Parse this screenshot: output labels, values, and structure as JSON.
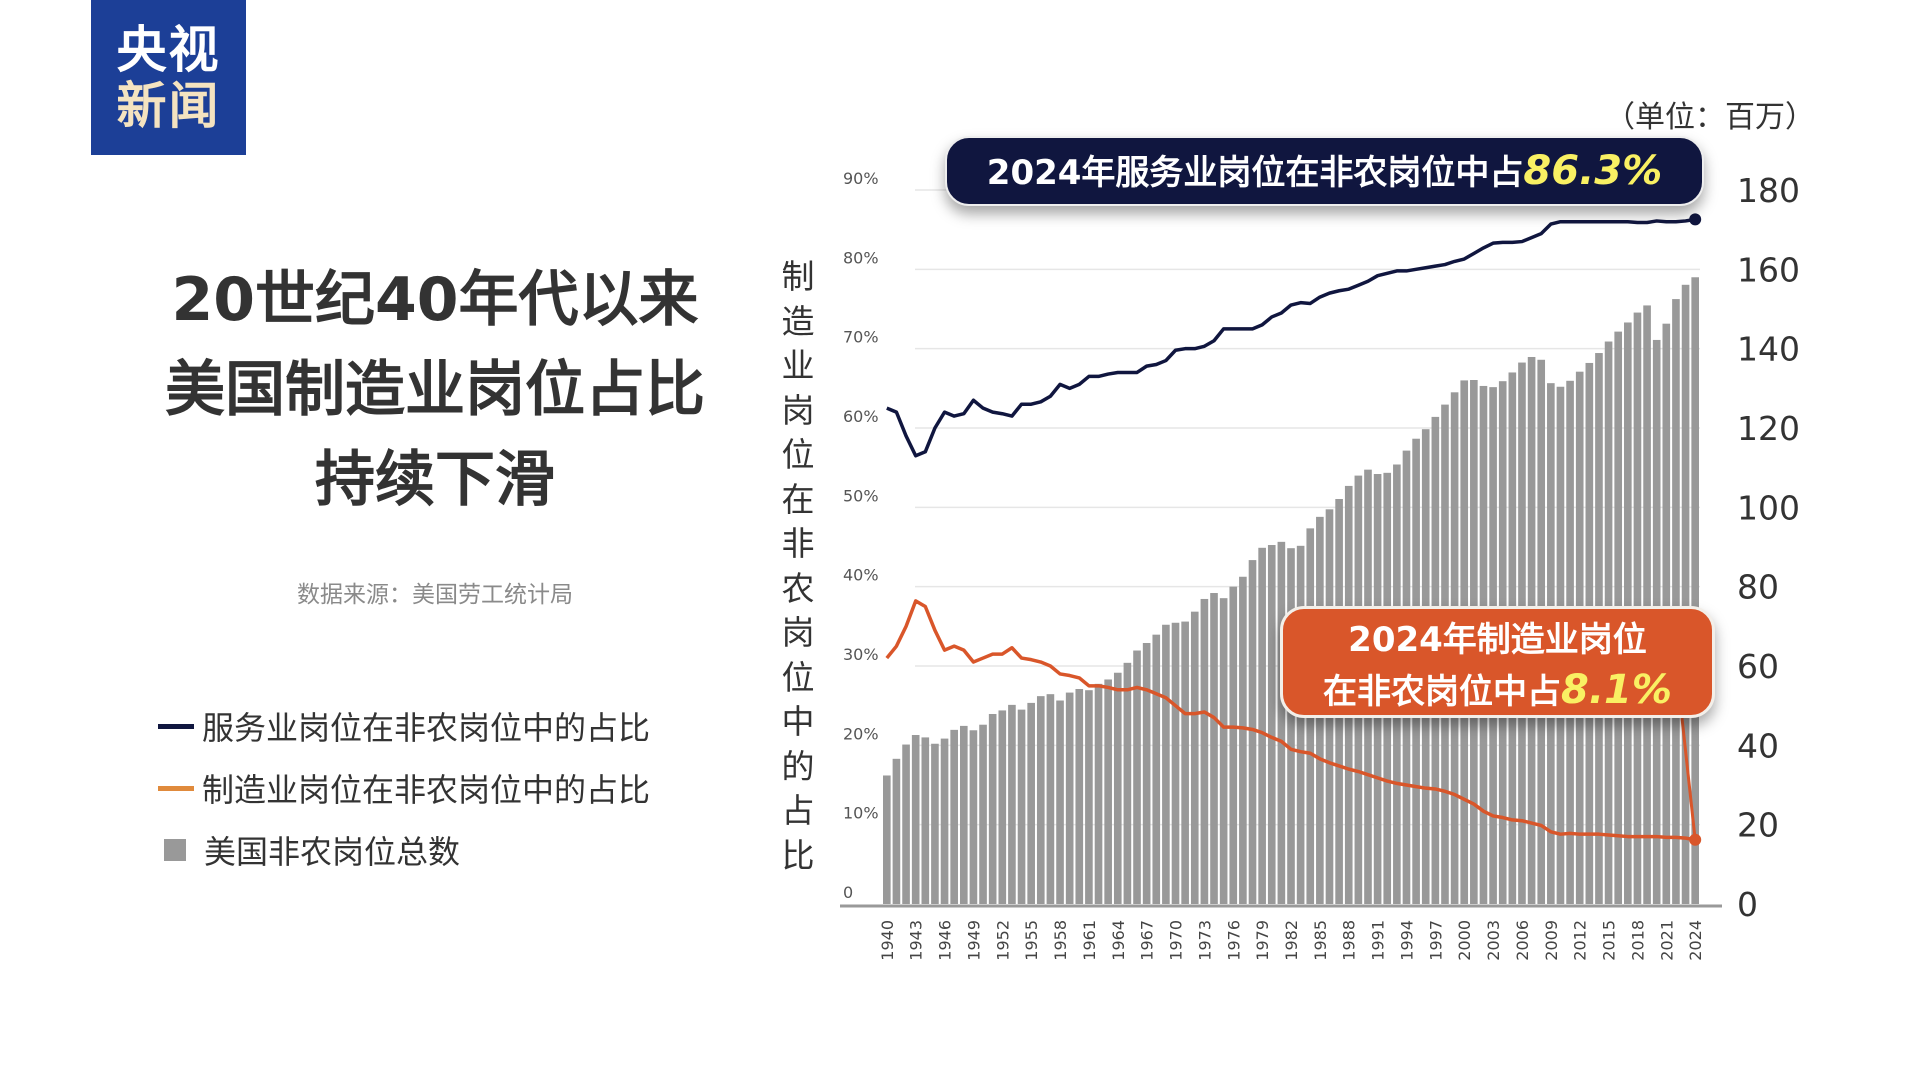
{
  "logo": {
    "line1": "央视",
    "line2": "新闻"
  },
  "title": {
    "line1": "20世纪40年代以来",
    "line2": "美国制造业岗位占比",
    "line3": "持续下滑"
  },
  "source": "数据来源：美国劳工统计局",
  "legend": [
    {
      "label": "服务业岗位在非农岗位中的占比",
      "color": "#10163f"
    },
    {
      "label": "制造业岗位在非农岗位中的占比",
      "color": "#e08a3c"
    },
    {
      "label": "美国非农岗位总数",
      "color": "#999999"
    }
  ],
  "unit_label": "（单位：百万）",
  "callouts": {
    "service": {
      "text": "2024年服务业岗位在非农岗位中占",
      "value": "86.3%"
    },
    "manufacturing": {
      "line1": "2024年制造业岗位",
      "line2": "在非农岗位中占",
      "value": "8.1%"
    }
  },
  "chart_data": {
    "type": "bar+line",
    "ylabel_left": "制造业岗位在非农岗位中的占比",
    "ylim_left": [
      0,
      90
    ],
    "yticks_left": [
      "0",
      "10%",
      "20%",
      "30%",
      "40%",
      "50%",
      "60%",
      "70%",
      "80%",
      "90%"
    ],
    "ylim_right": [
      0,
      180
    ],
    "yticks_right": [
      "0",
      "20",
      "40",
      "60",
      "80",
      "100",
      "120",
      "140",
      "160",
      "180"
    ],
    "grid": true,
    "x": [
      1940,
      1941,
      1942,
      1943,
      1944,
      1945,
      1946,
      1947,
      1948,
      1949,
      1950,
      1951,
      1952,
      1953,
      1954,
      1955,
      1956,
      1957,
      1958,
      1959,
      1960,
      1961,
      1962,
      1963,
      1964,
      1965,
      1966,
      1967,
      1968,
      1969,
      1970,
      1971,
      1972,
      1973,
      1974,
      1975,
      1976,
      1977,
      1978,
      1979,
      1980,
      1981,
      1982,
      1983,
      1984,
      1985,
      1986,
      1987,
      1988,
      1989,
      1990,
      1991,
      1992,
      1993,
      1994,
      1995,
      1996,
      1997,
      1998,
      1999,
      2000,
      2001,
      2002,
      2003,
      2004,
      2005,
      2006,
      2007,
      2008,
      2009,
      2010,
      2011,
      2012,
      2013,
      2014,
      2015,
      2016,
      2017,
      2018,
      2019,
      2020,
      2021,
      2022,
      2023,
      2024
    ],
    "xtick_labels": [
      "1940",
      "1943",
      "1946",
      "1949",
      "1952",
      "1955",
      "1958",
      "1961",
      "1964",
      "1967",
      "1970",
      "1973",
      "1976",
      "1979",
      "1982",
      "1985",
      "1988",
      "1991",
      "1994",
      "1997",
      "2000",
      "2003",
      "2006",
      "2009",
      "2012",
      "2015",
      "2018",
      "2021",
      "2024"
    ],
    "series": [
      {
        "name": "美国非农岗位总数",
        "type": "bar",
        "axis": "right",
        "color": "#999999",
        "values": [
          32.4,
          36.6,
          40.2,
          42.6,
          42.0,
          40.4,
          41.7,
          43.9,
          44.9,
          43.8,
          45.2,
          47.9,
          48.8,
          50.2,
          49.0,
          50.7,
          52.4,
          52.9,
          51.3,
          53.3,
          54.2,
          53.9,
          55.5,
          56.6,
          58.3,
          60.8,
          63.9,
          65.8,
          67.9,
          70.4,
          70.9,
          71.2,
          73.7,
          76.9,
          78.4,
          77.1,
          80.0,
          82.5,
          86.7,
          89.8,
          90.5,
          91.3,
          89.7,
          90.3,
          94.7,
          97.6,
          99.5,
          102.1,
          105.4,
          108.0,
          109.5,
          108.4,
          108.7,
          110.8,
          114.3,
          117.3,
          119.7,
          122.8,
          125.9,
          129.0,
          132.0,
          132.1,
          130.6,
          130.3,
          131.8,
          134.0,
          136.5,
          137.9,
          137.2,
          131.3,
          130.4,
          131.9,
          134.2,
          136.4,
          138.9,
          141.8,
          144.3,
          146.6,
          149.1,
          150.9,
          142.2,
          146.3,
          152.5,
          156.1,
          158.0
        ]
      },
      {
        "name": "服务业岗位在非农岗位中的占比",
        "type": "line",
        "axis": "left",
        "color": "#10163f",
        "values": [
          62.5,
          62,
          59,
          56.5,
          57,
          60,
          62,
          61.5,
          61.8,
          63.5,
          62.5,
          62,
          61.8,
          61.5,
          63,
          63,
          63.3,
          64,
          65.5,
          65,
          65.5,
          66.5,
          66.5,
          66.8,
          67,
          67,
          67,
          67.8,
          68,
          68.5,
          69.8,
          70,
          70,
          70.3,
          71,
          72.5,
          72.5,
          72.5,
          72.5,
          73,
          74,
          74.5,
          75.5,
          75.8,
          75.7,
          76.5,
          77,
          77.3,
          77.5,
          78,
          78.5,
          79.2,
          79.5,
          79.8,
          79.8,
          80,
          80.2,
          80.4,
          80.6,
          81,
          81.3,
          82,
          82.7,
          83.3,
          83.4,
          83.4,
          83.5,
          84,
          84.5,
          85.7,
          86,
          86,
          86,
          86,
          86,
          86,
          86,
          86,
          85.9,
          85.9,
          86.1,
          86,
          86,
          86.1,
          86.3
        ]
      },
      {
        "name": "制造业岗位在非农岗位中的占比",
        "type": "line",
        "axis": "left",
        "color": "#d9562a",
        "values": [
          31.0,
          32.5,
          35,
          38.2,
          37.5,
          34.5,
          32.0,
          32.5,
          32.0,
          30.5,
          31.0,
          31.5,
          31.5,
          32.3,
          31.0,
          30.8,
          30.5,
          30.0,
          29.0,
          28.8,
          28.5,
          27.5,
          27.5,
          27.3,
          27.0,
          27.0,
          27.3,
          27.0,
          26.5,
          26.0,
          25.0,
          24.0,
          24.0,
          24.2,
          23.5,
          22.3,
          22.3,
          22.2,
          22.0,
          21.6,
          21.0,
          20.5,
          19.5,
          19.2,
          19.0,
          18.3,
          17.8,
          17.4,
          17.0,
          16.7,
          16.3,
          15.9,
          15.5,
          15.2,
          15.0,
          14.8,
          14.6,
          14.5,
          14.2,
          13.8,
          13.2,
          12.6,
          11.7,
          11.1,
          10.9,
          10.6,
          10.5,
          10.2,
          9.9,
          9.1,
          8.8,
          8.9,
          8.8,
          8.8,
          8.8,
          8.7,
          8.6,
          8.5,
          8.5,
          8.5,
          8.5,
          8.4,
          8.4,
          8.3,
          8.1
        ]
      }
    ]
  }
}
